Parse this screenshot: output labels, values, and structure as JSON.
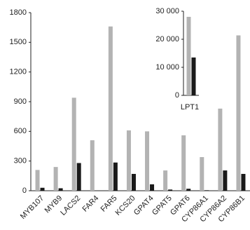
{
  "chart_data": [
    {
      "type": "bar",
      "categories": [
        "MYB107",
        "MYB9",
        "LACS2",
        "FAR4",
        "FAR5",
        "KCS20",
        "GPAT4",
        "GPAT5",
        "GPAT6",
        "CYP86A1",
        "CYP86A2",
        "CYP86B1"
      ],
      "series": [
        {
          "color": "#b3b3b3",
          "values": [
            210,
            240,
            940,
            510,
            1660,
            610,
            600,
            205,
            560,
            340,
            830,
            1570
          ]
        },
        {
          "color": "#1a1a1a",
          "values": [
            30,
            25,
            280,
            0,
            285,
            170,
            65,
            12,
            20,
            5,
            205,
            170
          ]
        }
      ],
      "ylim": [
        0,
        1800
      ],
      "yticks": [
        0,
        300,
        600,
        900,
        1200,
        1500,
        1800
      ]
    },
    {
      "type": "bar",
      "categories": [
        "LPT1"
      ],
      "series": [
        {
          "color": "#b3b3b3",
          "values": [
            28000
          ]
        },
        {
          "color": "#1a1a1a",
          "values": [
            13500
          ]
        }
      ],
      "ylim": [
        0,
        30000
      ],
      "yticks": [
        0,
        {
          "value": 10000,
          "label": "10 000"
        },
        {
          "value": 20000,
          "label": "20 000"
        },
        {
          "value": 30000,
          "label": "30 000"
        }
      ]
    }
  ]
}
